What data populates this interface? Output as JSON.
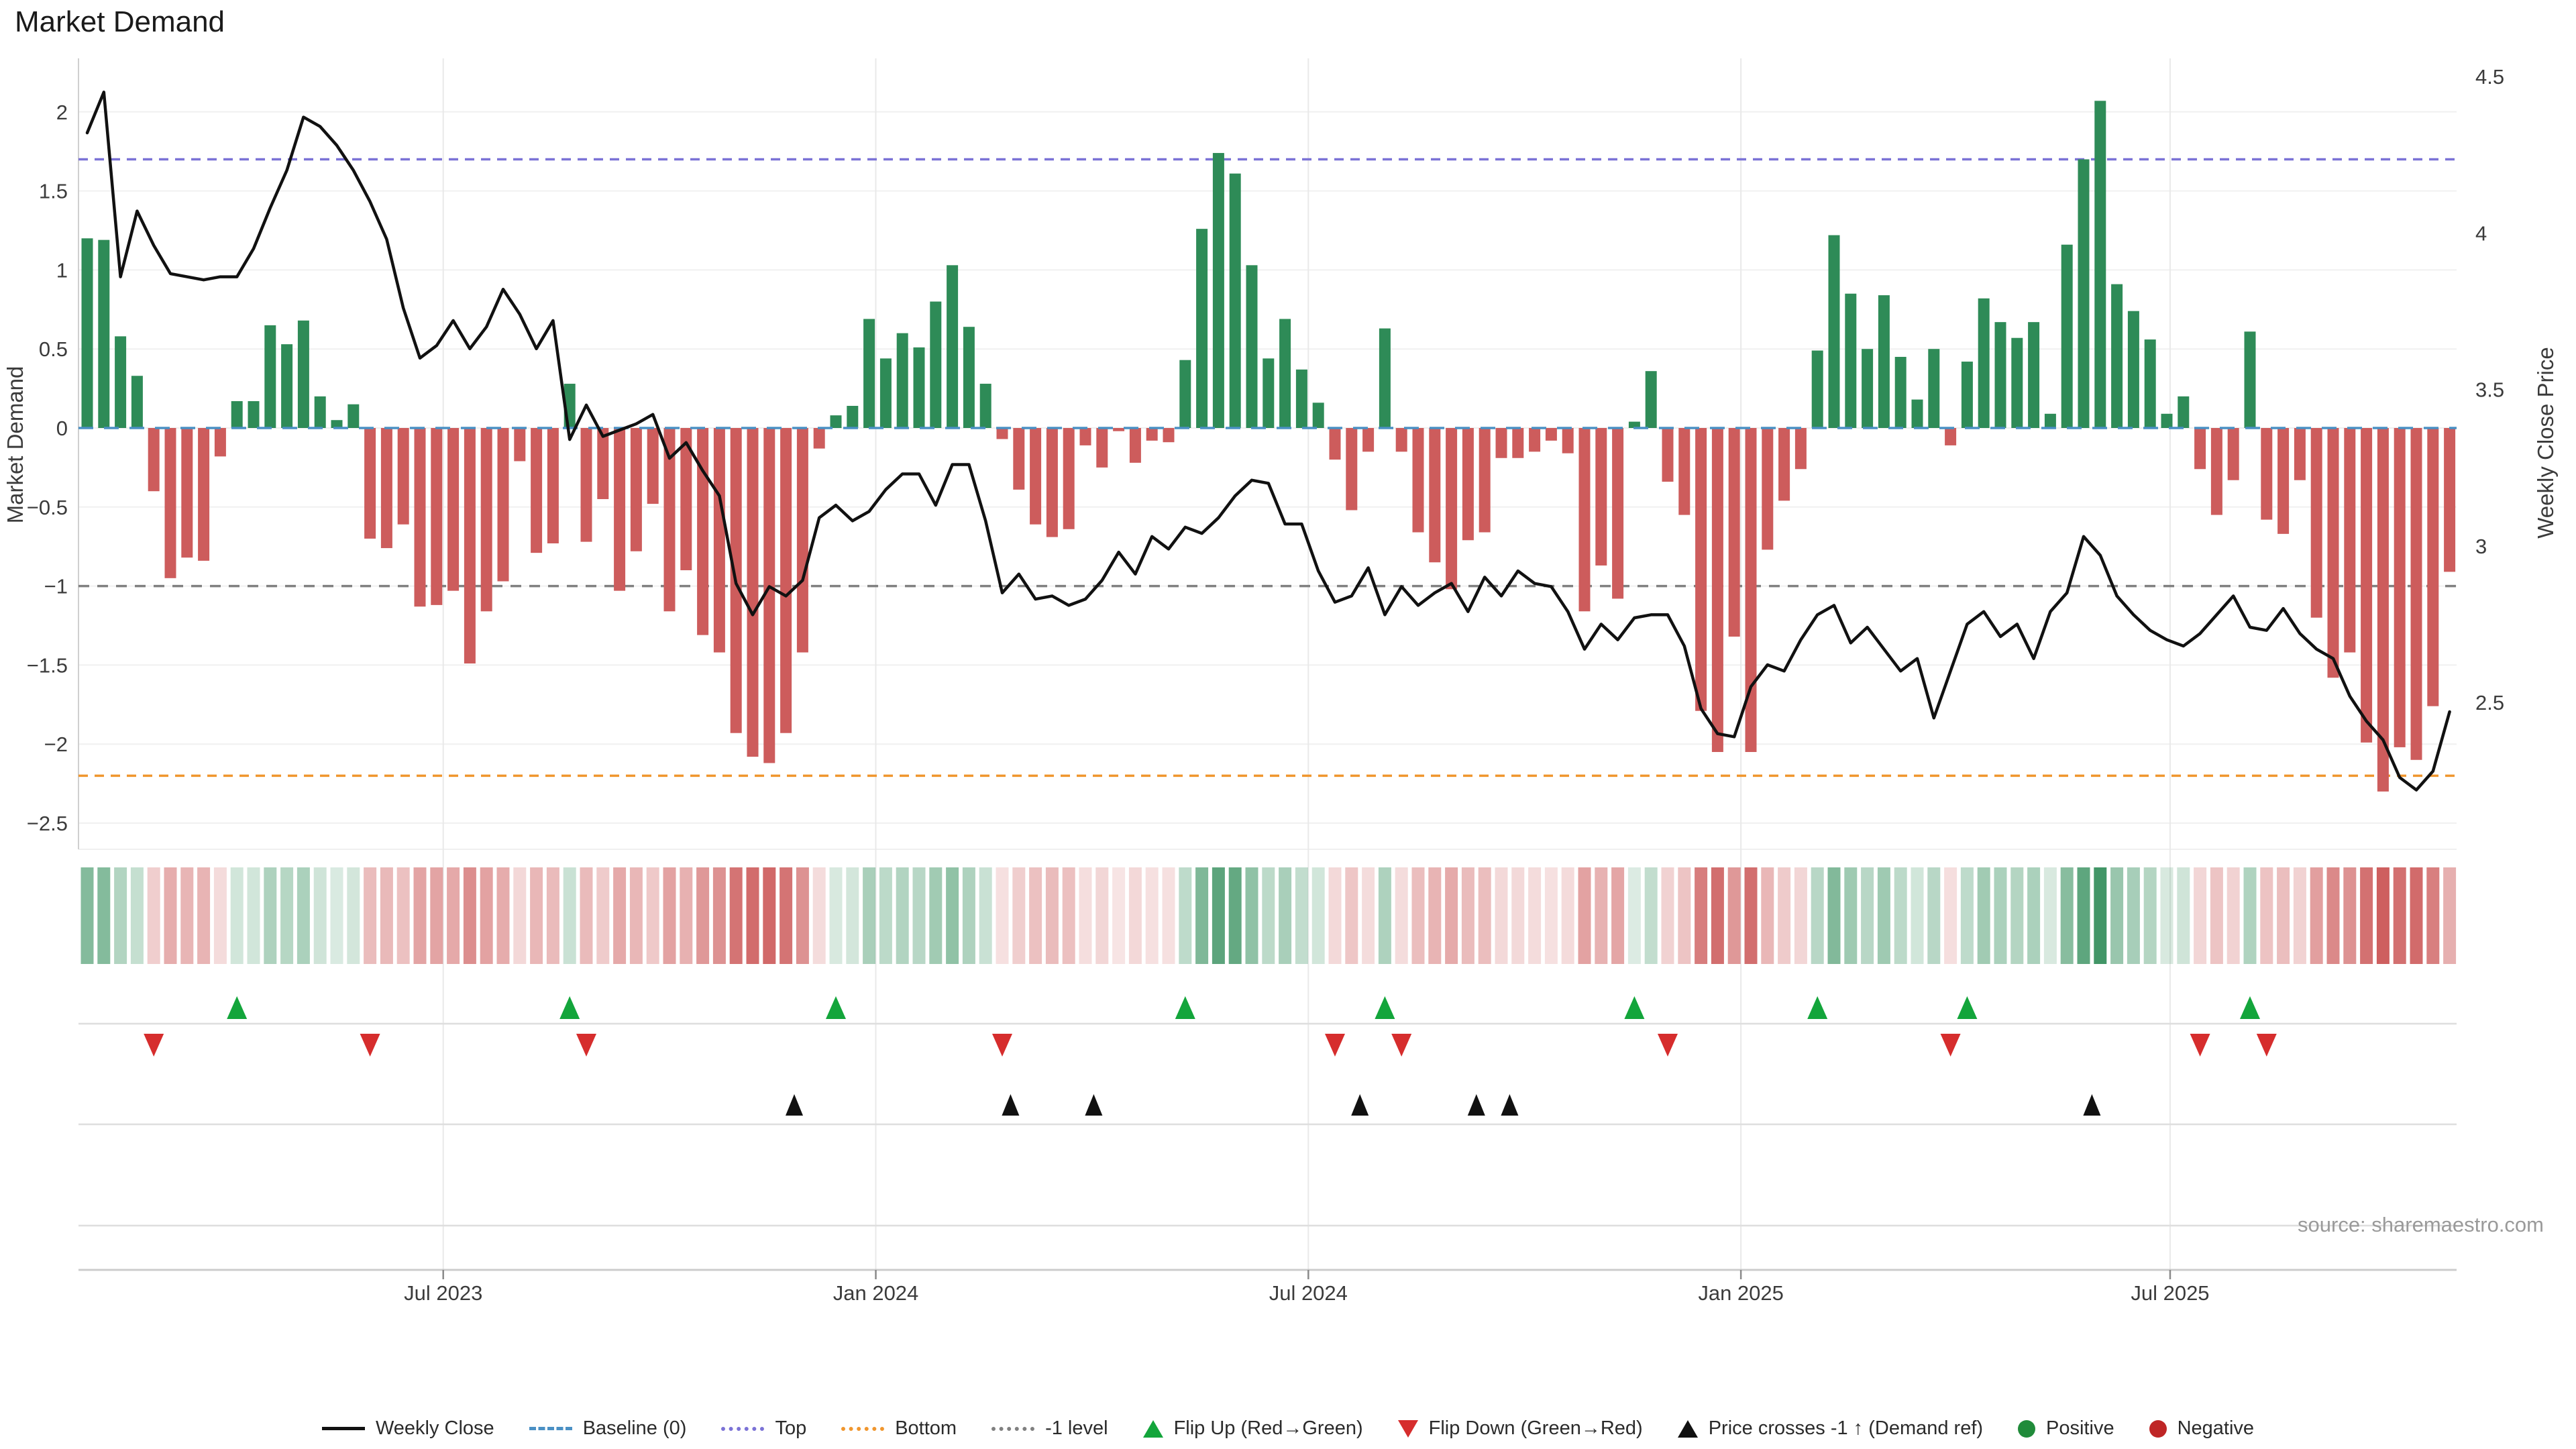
{
  "page": {
    "title": "Market Demand",
    "source_note": "source: sharemaestro.com"
  },
  "chart_data": {
    "type": "bar",
    "title": "Market Demand",
    "ylabel_left": "Market Demand",
    "ylabel_right": "Weekly Close Price",
    "grid": true,
    "legend_position": "bottom-center",
    "x_axis": {
      "tick_labels": [
        "Jul 2023",
        "Jan 2024",
        "Jul 2024",
        "Jan 2025",
        "Jul 2025"
      ],
      "tick_weeks": [
        22.4,
        48.4,
        74.4,
        100.4,
        126.2
      ],
      "n_weeks": 143
    },
    "y_axis_left": {
      "tick_values": [
        2,
        1.5,
        1,
        0.5,
        0,
        -0.5,
        -1,
        -1.5,
        -2,
        -2.5
      ],
      "tick_labels": [
        "2",
        "1.5",
        "1",
        "0.5",
        "0",
        "−0.5",
        "−1",
        "−1.5",
        "−2",
        "−2.5"
      ],
      "range": [
        -2.67,
        2.34
      ]
    },
    "y_axis_right": {
      "tick_values": [
        4.5,
        4,
        3.5,
        3,
        2.5
      ],
      "tick_labels": [
        "4.5",
        "4",
        "3.5",
        "3",
        "2.5"
      ],
      "range": [
        2.03,
        4.56
      ]
    },
    "reference_lines": {
      "baseline": 0,
      "top": 1.7,
      "bottom": -2.2,
      "minus_one": -1
    },
    "series": [
      {
        "name": "Market Demand (weekly bars)",
        "type": "bar",
        "axis": "left",
        "values": [
          1.2,
          1.19,
          0.58,
          0.33,
          -0.4,
          -0.95,
          -0.82,
          -0.84,
          -0.18,
          0.17,
          0.17,
          0.65,
          0.53,
          0.68,
          0.2,
          0.05,
          0.15,
          -0.7,
          -0.76,
          -0.61,
          -1.13,
          -1.12,
          -1.03,
          -1.49,
          -1.16,
          -0.97,
          -0.21,
          -0.79,
          -0.73,
          0.28,
          -0.72,
          -0.45,
          -1.03,
          -0.78,
          -0.48,
          -1.16,
          -0.9,
          -1.31,
          -1.42,
          -1.93,
          -2.08,
          -2.12,
          -1.93,
          -1.42,
          -0.13,
          0.08,
          0.14,
          0.69,
          0.44,
          0.6,
          0.51,
          0.8,
          1.03,
          0.64,
          0.28,
          -0.07,
          -0.39,
          -0.61,
          -0.69,
          -0.64,
          -0.11,
          -0.25,
          -0.02,
          -0.22,
          -0.08,
          -0.09,
          0.43,
          1.26,
          1.74,
          1.61,
          1.03,
          0.44,
          0.69,
          0.37,
          0.16,
          -0.2,
          -0.52,
          -0.15,
          0.63,
          -0.15,
          -0.66,
          -0.85,
          -1.02,
          -0.71,
          -0.66,
          -0.19,
          -0.19,
          -0.15,
          -0.08,
          -0.16,
          -1.16,
          -0.87,
          -1.08,
          0.04,
          0.36,
          -0.34,
          -0.55,
          -1.79,
          -2.05,
          -1.32,
          -2.05,
          -0.77,
          -0.46,
          -0.26,
          0.49,
          1.22,
          0.85,
          0.5,
          0.84,
          0.45,
          0.18,
          0.5,
          -0.11,
          0.42,
          0.82,
          0.67,
          0.57,
          0.67,
          0.09,
          1.16,
          1.7,
          2.07,
          0.91,
          0.74,
          0.56,
          0.09,
          0.2,
          -0.26,
          -0.55,
          -0.33,
          0.61,
          -0.58,
          -0.67,
          -0.33,
          -1.2,
          -1.58,
          -1.42,
          -1.99,
          -2.3,
          -2.02,
          -2.1,
          -1.76,
          -0.91
        ]
      },
      {
        "name": "Weekly Close",
        "type": "line",
        "axis": "right",
        "values": [
          4.32,
          4.45,
          3.86,
          4.07,
          3.96,
          3.87,
          3.86,
          3.85,
          3.86,
          3.86,
          3.95,
          4.08,
          4.2,
          4.37,
          4.34,
          4.28,
          4.2,
          4.1,
          3.98,
          3.76,
          3.6,
          3.64,
          3.72,
          3.63,
          3.7,
          3.82,
          3.74,
          3.63,
          3.72,
          3.34,
          3.45,
          3.35,
          3.37,
          3.39,
          3.42,
          3.28,
          3.33,
          3.24,
          3.16,
          2.88,
          2.78,
          2.87,
          2.84,
          2.89,
          3.09,
          3.13,
          3.08,
          3.11,
          3.18,
          3.23,
          3.23,
          3.13,
          3.26,
          3.26,
          3.08,
          2.85,
          2.91,
          2.83,
          2.84,
          2.81,
          2.83,
          2.89,
          2.98,
          2.91,
          3.03,
          2.99,
          3.06,
          3.04,
          3.09,
          3.16,
          3.21,
          3.2,
          3.07,
          3.07,
          2.92,
          2.82,
          2.84,
          2.93,
          2.78,
          2.87,
          2.81,
          2.85,
          2.88,
          2.79,
          2.9,
          2.84,
          2.92,
          2.88,
          2.87,
          2.79,
          2.67,
          2.75,
          2.7,
          2.77,
          2.78,
          2.78,
          2.68,
          2.48,
          2.4,
          2.39,
          2.55,
          2.62,
          2.6,
          2.7,
          2.78,
          2.81,
          2.69,
          2.74,
          2.67,
          2.6,
          2.64,
          2.45,
          2.6,
          2.75,
          2.79,
          2.71,
          2.75,
          2.64,
          2.79,
          2.85,
          3.03,
          2.97,
          2.84,
          2.78,
          2.73,
          2.7,
          2.68,
          2.72,
          2.78,
          2.84,
          2.74,
          2.73,
          2.8,
          2.72,
          2.67,
          2.64,
          2.52,
          2.44,
          2.38,
          2.26,
          2.22,
          2.28,
          2.47
        ]
      }
    ],
    "markers": {
      "price_cross_weeks": [
        43.5,
        56.5,
        61.5,
        77.5,
        84.5,
        86.5,
        121.5
      ]
    },
    "heatmap_strip": {
      "source": "bar values",
      "max_abs": 2.35
    },
    "colors": {
      "bar_positive": "#2e8b57",
      "bar_negative": "#cd5c5c",
      "price_line": "#111111",
      "baseline": "#4a90c4",
      "top_line": "#7b72d6",
      "bottom_line": "#f0962e",
      "minus_one_line": "#808080",
      "flip_up": "#13a53b",
      "flip_down": "#d62d2d",
      "price_cross": "#111111",
      "grid": "#f0f0f0",
      "axis_text": "#3b3b3b"
    }
  },
  "legend": {
    "items": [
      {
        "glyph": "line",
        "color": "#111111",
        "label": "Weekly Close"
      },
      {
        "glyph": "dash",
        "color": "#4a90c4",
        "label": "Baseline (0)"
      },
      {
        "glyph": "dot",
        "color": "#7b72d6",
        "label": "Top"
      },
      {
        "glyph": "dot",
        "color": "#f0962e",
        "label": "Bottom"
      },
      {
        "glyph": "dot",
        "color": "#808080",
        "label": "-1 level"
      },
      {
        "glyph": "tri-up",
        "color": "#13a53b",
        "label": "Flip Up (Red→Green)"
      },
      {
        "glyph": "tri-down",
        "color": "#d62d2d",
        "label": "Flip Down (Green→Red)"
      },
      {
        "glyph": "tri-up",
        "color": "#111111",
        "label": "Price crosses -1 ↑ (Demand ref)"
      },
      {
        "glyph": "circle",
        "color": "#208b3a",
        "label": "Positive"
      },
      {
        "glyph": "circle",
        "color": "#bf2626",
        "label": "Negative"
      }
    ]
  }
}
